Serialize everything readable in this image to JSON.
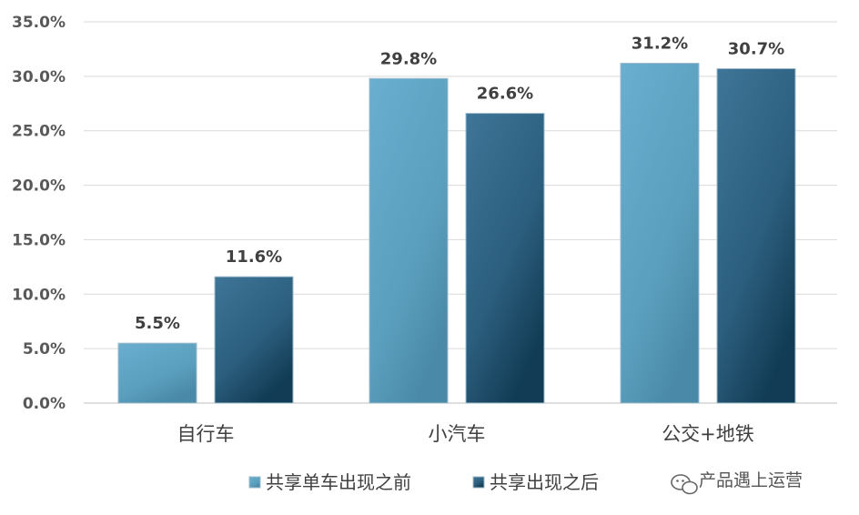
{
  "chart_data": {
    "type": "bar",
    "categories": [
      "自行车",
      "小汽车",
      "公交+地铁"
    ],
    "series": [
      {
        "name": "共享单车出现之前",
        "values": [
          5.5,
          29.8,
          31.2
        ],
        "labels": [
          "5.5%",
          "29.8%",
          "31.2%"
        ],
        "color": "#5fa3c4"
      },
      {
        "name": "共享出现之后",
        "values": [
          11.6,
          26.6,
          30.7
        ],
        "labels": [
          "11.6%",
          "26.6%",
          "30.7%"
        ],
        "color": "#2e6685"
      }
    ],
    "ylim": [
      0,
      35
    ],
    "yticks": [
      0,
      5,
      10,
      15,
      20,
      25,
      30,
      35
    ],
    "ytick_labels": [
      "0.0%",
      "5.0%",
      "10.0%",
      "15.0%",
      "20.0%",
      "25.0%",
      "30.0%",
      "35.0%"
    ],
    "grid": true,
    "legend_position": "bottom"
  },
  "watermark": {
    "text": "产品遇上运营",
    "icon": "wechat-icon"
  }
}
